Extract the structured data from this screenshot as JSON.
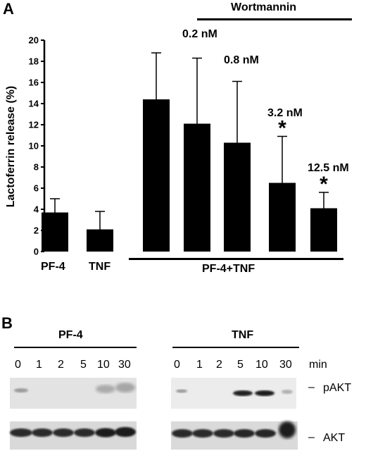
{
  "panel_a": {
    "letter": "A",
    "wortmannin_label": "Wortmannin",
    "group_label": "PF-4+TNF",
    "concentrations": [
      "0.2 nM",
      "0.8 nM",
      "3.2 nM",
      "12.5 nM"
    ],
    "significance_mark": "*"
  },
  "chart_data": {
    "type": "bar",
    "ylabel": "Lactoferrin release (%)",
    "ylim": [
      0,
      20
    ],
    "yticks": [
      0,
      2,
      4,
      6,
      8,
      10,
      12,
      14,
      16,
      18,
      20
    ],
    "categories": [
      "PF-4",
      "TNF",
      "",
      "",
      "",
      "",
      ""
    ],
    "values": [
      3.7,
      2.1,
      14.4,
      12.1,
      10.3,
      6.5,
      4.1
    ],
    "errors": [
      1.3,
      1.7,
      4.4,
      6.2,
      5.8,
      4.4,
      1.5
    ],
    "significant": [
      false,
      false,
      false,
      false,
      false,
      true,
      true
    ],
    "bar_color": "#000000"
  },
  "panel_b": {
    "letter": "B",
    "groups": [
      {
        "title": "PF-4",
        "lanes": [
          "0",
          "1",
          "2",
          "5",
          "10",
          "30"
        ]
      },
      {
        "title": "TNF",
        "lanes": [
          "0",
          "1",
          "2",
          "5",
          "10",
          "30"
        ]
      }
    ],
    "unit": "min",
    "bands": [
      "pAKT",
      "AKT"
    ],
    "dash": "–"
  }
}
